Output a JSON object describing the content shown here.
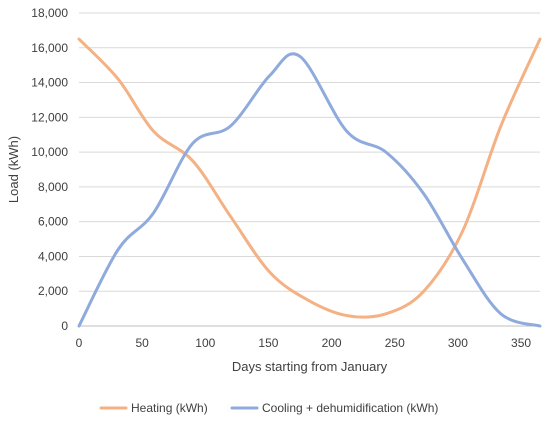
{
  "chart_data": {
    "type": "line",
    "title": "",
    "xlabel": "Days starting from January",
    "ylabel": "Load (kWh)",
    "xlim": [
      0,
      365
    ],
    "ylim": [
      0,
      18000
    ],
    "x_ticks": [
      0,
      50,
      100,
      150,
      200,
      250,
      300,
      350
    ],
    "y_ticks": [
      0,
      2000,
      4000,
      6000,
      8000,
      10000,
      12000,
      14000,
      16000,
      18000
    ],
    "x_tick_labels": [
      "0",
      "50",
      "100",
      "150",
      "200",
      "250",
      "300",
      "350"
    ],
    "y_tick_labels": [
      "0",
      "2,000",
      "4,000",
      "6,000",
      "8,000",
      "10,000",
      "12,000",
      "14,000",
      "16,000",
      "18,000"
    ],
    "grid": {
      "horizontal": true,
      "vertical": false
    },
    "legend_position": "bottom",
    "series": [
      {
        "name": "Heating (kWh)",
        "color": "#f4b183",
        "points": [
          [
            0,
            16500
          ],
          [
            31,
            14200
          ],
          [
            59,
            11200
          ],
          [
            90,
            9500
          ],
          [
            120,
            6300
          ],
          [
            151,
            3100
          ],
          [
            181,
            1500
          ],
          [
            212,
            600
          ],
          [
            243,
            700
          ],
          [
            273,
            2000
          ],
          [
            304,
            5500
          ],
          [
            334,
            11500
          ],
          [
            365,
            16500
          ]
        ]
      },
      {
        "name": "Cooling + dehumidification (kWh)",
        "color": "#8faadc",
        "points": [
          [
            0,
            0
          ],
          [
            31,
            4400
          ],
          [
            59,
            6500
          ],
          [
            90,
            10500
          ],
          [
            120,
            11500
          ],
          [
            151,
            14400
          ],
          [
            175,
            15500
          ],
          [
            212,
            11200
          ],
          [
            243,
            10000
          ],
          [
            273,
            7600
          ],
          [
            304,
            3800
          ],
          [
            334,
            700
          ],
          [
            365,
            0
          ]
        ]
      }
    ]
  }
}
